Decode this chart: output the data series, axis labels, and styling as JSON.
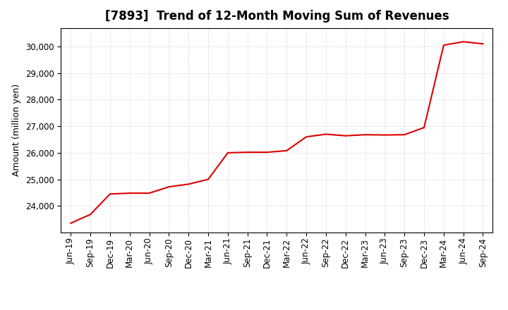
{
  "title": "[7893]  Trend of 12-Month Moving Sum of Revenues",
  "ylabel": "Amount (million yen)",
  "line_color": "#dd0000",
  "line_width": 1.5,
  "bg_color": "#ffffff",
  "grid_color": "#999999",
  "xlim_labels": [
    "Jun-19",
    "Sep-19",
    "Dec-19",
    "Mar-20",
    "Jun-20",
    "Sep-20",
    "Dec-20",
    "Mar-21",
    "Jun-21",
    "Sep-21",
    "Dec-21",
    "Mar-22",
    "Jun-22",
    "Sep-22",
    "Dec-22",
    "Mar-23",
    "Jun-23",
    "Sep-23",
    "Dec-23",
    "Mar-24",
    "Jun-24",
    "Sep-24"
  ],
  "x_values": [
    0,
    1,
    2,
    3,
    4,
    5,
    6,
    7,
    8,
    9,
    10,
    11,
    12,
    13,
    14,
    15,
    16,
    17,
    18,
    19,
    20,
    21
  ],
  "y_values": [
    23350,
    23680,
    24450,
    24480,
    24480,
    24720,
    24820,
    25000,
    26000,
    26020,
    26020,
    26080,
    26600,
    26700,
    26640,
    26680,
    26670,
    26680,
    26950,
    30050,
    30180,
    30100
  ],
  "yticks": [
    24000,
    25000,
    26000,
    27000,
    28000,
    29000,
    30000
  ],
  "ylim": [
    23000,
    30700
  ],
  "title_fontsize": 12,
  "tick_fontsize": 8.5,
  "ylabel_fontsize": 9
}
